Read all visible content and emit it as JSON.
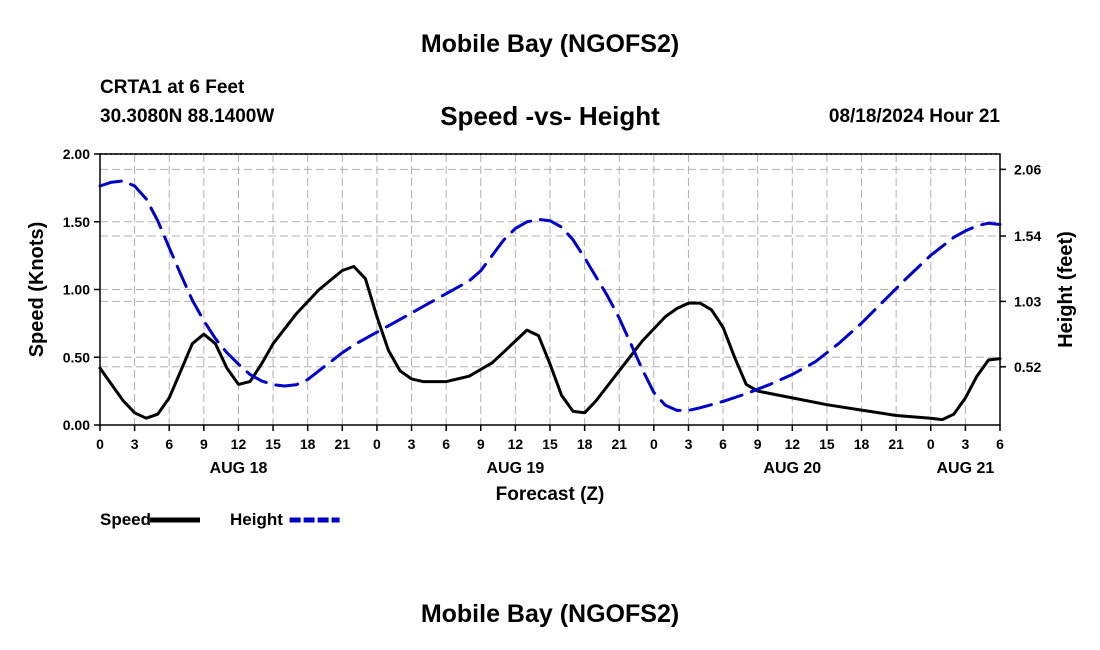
{
  "header": {
    "title": "Mobile Bay (NGOFS2)",
    "station": "CRTA1 at 6 Feet",
    "coords": "30.3080N  88.1400W",
    "subtitle": "Speed -vs- Height",
    "run_time": "08/18/2024 Hour 21"
  },
  "footer": {
    "title": "Mobile Bay (NGOFS2)"
  },
  "chart_data": {
    "type": "line",
    "title": "Speed -vs- Height",
    "xlabel": "Forecast (Z)",
    "ylabel": "Speed (Knots)",
    "y2label": "Height (feet)",
    "x_unit": "hours since 08/18 00Z",
    "xlim": [
      0,
      78
    ],
    "ylim": [
      0,
      2.0
    ],
    "y2lim": [
      0.066,
      2.18
    ],
    "x_ticks": [
      0,
      3,
      6,
      9,
      12,
      15,
      18,
      21,
      24,
      27,
      30,
      33,
      36,
      39,
      42,
      45,
      48,
      51,
      54,
      57,
      60,
      63,
      66,
      69,
      72,
      75,
      78
    ],
    "x_tick_labels": [
      "0",
      "3",
      "6",
      "9",
      "12",
      "15",
      "18",
      "21",
      "0",
      "3",
      "6",
      "9",
      "12",
      "15",
      "18",
      "21",
      "0",
      "3",
      "6",
      "9",
      "12",
      "15",
      "18",
      "21",
      "0",
      "3",
      "6"
    ],
    "day_labels": [
      {
        "x": 12,
        "label": "AUG 18"
      },
      {
        "x": 36,
        "label": "AUG 19"
      },
      {
        "x": 60,
        "label": "AUG 20"
      },
      {
        "x": 75,
        "label": "AUG 21"
      }
    ],
    "y_ticks": [
      0,
      0.5,
      1.0,
      1.5,
      2.0
    ],
    "y_tick_labels": [
      "0.00",
      "0.50",
      "1.00",
      "1.50",
      "2.00"
    ],
    "y2_ticks": [
      0.52,
      1.03,
      1.54,
      2.06
    ],
    "y2_tick_labels": [
      "0.52",
      "1.03",
      "1.54",
      "2.06"
    ],
    "grid": true,
    "legend_position": "bottom-left",
    "series": [
      {
        "name": "Speed",
        "axis": "left",
        "color": "#000000",
        "dash": "solid",
        "points": [
          [
            0,
            0.42
          ],
          [
            1,
            0.3
          ],
          [
            2,
            0.18
          ],
          [
            3,
            0.09
          ],
          [
            4,
            0.05
          ],
          [
            5,
            0.08
          ],
          [
            6,
            0.2
          ],
          [
            7,
            0.4
          ],
          [
            8,
            0.6
          ],
          [
            9,
            0.67
          ],
          [
            10,
            0.6
          ],
          [
            11,
            0.42
          ],
          [
            12,
            0.3
          ],
          [
            13,
            0.32
          ],
          [
            14,
            0.45
          ],
          [
            15,
            0.6
          ],
          [
            17,
            0.82
          ],
          [
            19,
            1.0
          ],
          [
            21,
            1.14
          ],
          [
            22,
            1.17
          ],
          [
            23,
            1.08
          ],
          [
            24,
            0.8
          ],
          [
            25,
            0.55
          ],
          [
            26,
            0.4
          ],
          [
            27,
            0.34
          ],
          [
            28,
            0.32
          ],
          [
            30,
            0.32
          ],
          [
            32,
            0.36
          ],
          [
            34,
            0.46
          ],
          [
            36,
            0.62
          ],
          [
            37,
            0.7
          ],
          [
            38,
            0.66
          ],
          [
            39,
            0.45
          ],
          [
            40,
            0.22
          ],
          [
            41,
            0.1
          ],
          [
            42,
            0.09
          ],
          [
            43,
            0.18
          ],
          [
            45,
            0.4
          ],
          [
            47,
            0.62
          ],
          [
            49,
            0.8
          ],
          [
            50,
            0.86
          ],
          [
            51,
            0.9
          ],
          [
            52,
            0.9
          ],
          [
            53,
            0.85
          ],
          [
            54,
            0.72
          ],
          [
            55,
            0.5
          ],
          [
            56,
            0.3
          ],
          [
            57,
            0.25
          ],
          [
            60,
            0.2
          ],
          [
            63,
            0.15
          ],
          [
            66,
            0.11
          ],
          [
            69,
            0.07
          ],
          [
            72,
            0.05
          ],
          [
            73,
            0.04
          ],
          [
            74,
            0.08
          ],
          [
            75,
            0.2
          ],
          [
            76,
            0.36
          ],
          [
            77,
            0.48
          ],
          [
            78,
            0.49
          ]
        ]
      },
      {
        "name": "Height",
        "axis": "right",
        "color": "#0000cc",
        "dash": "dashed",
        "points": [
          [
            0,
            1.93
          ],
          [
            1,
            1.96
          ],
          [
            2,
            1.97
          ],
          [
            3,
            1.93
          ],
          [
            4,
            1.83
          ],
          [
            5,
            1.66
          ],
          [
            6,
            1.45
          ],
          [
            7,
            1.24
          ],
          [
            8,
            1.04
          ],
          [
            9,
            0.88
          ],
          [
            10,
            0.74
          ],
          [
            11,
            0.63
          ],
          [
            12,
            0.54
          ],
          [
            13,
            0.46
          ],
          [
            14,
            0.41
          ],
          [
            15,
            0.38
          ],
          [
            16,
            0.37
          ],
          [
            17,
            0.38
          ],
          [
            18,
            0.42
          ],
          [
            19,
            0.49
          ],
          [
            20,
            0.56
          ],
          [
            21,
            0.63
          ],
          [
            22,
            0.69
          ],
          [
            23,
            0.74
          ],
          [
            24,
            0.79
          ],
          [
            25,
            0.84
          ],
          [
            26,
            0.89
          ],
          [
            27,
            0.94
          ],
          [
            28,
            0.99
          ],
          [
            29,
            1.04
          ],
          [
            30,
            1.09
          ],
          [
            31,
            1.14
          ],
          [
            32,
            1.19
          ],
          [
            33,
            1.27
          ],
          [
            34,
            1.39
          ],
          [
            35,
            1.51
          ],
          [
            36,
            1.6
          ],
          [
            37,
            1.65
          ],
          [
            38,
            1.67
          ],
          [
            39,
            1.66
          ],
          [
            40,
            1.61
          ],
          [
            41,
            1.51
          ],
          [
            42,
            1.37
          ],
          [
            43,
            1.22
          ],
          [
            44,
            1.07
          ],
          [
            45,
            0.9
          ],
          [
            46,
            0.7
          ],
          [
            47,
            0.5
          ],
          [
            48,
            0.32
          ],
          [
            49,
            0.22
          ],
          [
            50,
            0.18
          ],
          [
            51,
            0.18
          ],
          [
            52,
            0.2
          ],
          [
            54,
            0.25
          ],
          [
            56,
            0.31
          ],
          [
            58,
            0.38
          ],
          [
            60,
            0.46
          ],
          [
            62,
            0.56
          ],
          [
            64,
            0.7
          ],
          [
            66,
            0.86
          ],
          [
            68,
            1.04
          ],
          [
            70,
            1.22
          ],
          [
            72,
            1.39
          ],
          [
            74,
            1.53
          ],
          [
            75,
            1.58
          ],
          [
            76,
            1.62
          ],
          [
            77,
            1.64
          ],
          [
            78,
            1.63
          ]
        ]
      }
    ],
    "legend": [
      {
        "label": "Speed",
        "color": "#000000",
        "dash": "solid"
      },
      {
        "label": "Height",
        "color": "#0000cc",
        "dash": "dashed"
      }
    ]
  }
}
